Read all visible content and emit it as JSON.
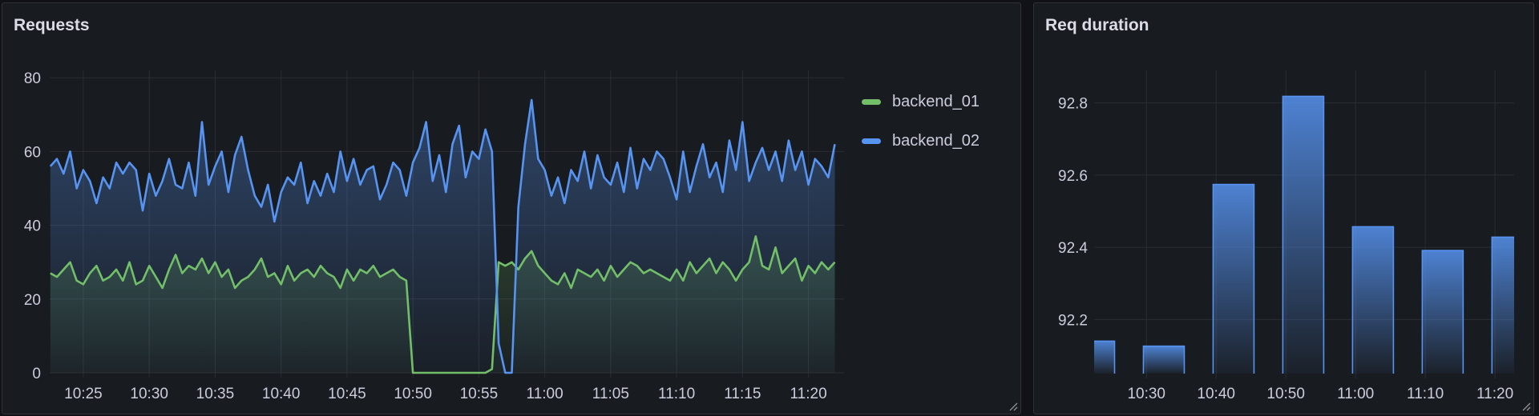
{
  "panels": [
    {
      "title": "Requests"
    },
    {
      "title": "Req duration"
    }
  ],
  "colors": {
    "backend_01": "#73bf69",
    "backend_02": "#5794f2",
    "background": "#181b1f",
    "grid": "#2a2d33",
    "text": "#ccccdc"
  },
  "chart_data": [
    {
      "type": "line",
      "title": "Requests",
      "xlabel": "",
      "ylabel": "",
      "x_domain": [
        "10:22:27",
        "11:22:42"
      ],
      "ylim": [
        0,
        82
      ],
      "y_ticks": [
        "0",
        "20",
        "40",
        "60",
        "80"
      ],
      "x_ticks": [
        "10:25",
        "10:30",
        "10:35",
        "10:40",
        "10:45",
        "10:50",
        "10:55",
        "11:00",
        "11:05",
        "11:10",
        "11:15",
        "11:20"
      ],
      "grid": true,
      "legend": "right",
      "fill": "gradient",
      "x": [
        "10:22:30",
        "10:23:00",
        "10:23:30",
        "10:24:00",
        "10:24:30",
        "10:25:00",
        "10:25:30",
        "10:26:00",
        "10:26:30",
        "10:27:00",
        "10:27:30",
        "10:28:00",
        "10:28:30",
        "10:29:00",
        "10:29:30",
        "10:30:00",
        "10:30:30",
        "10:31:00",
        "10:31:30",
        "10:32:00",
        "10:32:30",
        "10:33:00",
        "10:33:30",
        "10:34:00",
        "10:34:30",
        "10:35:00",
        "10:35:30",
        "10:36:00",
        "10:36:30",
        "10:37:00",
        "10:37:30",
        "10:38:00",
        "10:38:30",
        "10:39:00",
        "10:39:30",
        "10:40:00",
        "10:40:30",
        "10:41:00",
        "10:41:30",
        "10:42:00",
        "10:42:30",
        "10:43:00",
        "10:43:30",
        "10:44:00",
        "10:44:30",
        "10:45:00",
        "10:45:30",
        "10:46:00",
        "10:46:30",
        "10:47:00",
        "10:47:30",
        "10:48:00",
        "10:48:30",
        "10:49:00",
        "10:49:30",
        "10:50:00",
        "10:50:30",
        "10:51:00",
        "10:51:30",
        "10:52:00",
        "10:52:30",
        "10:53:00",
        "10:53:30",
        "10:54:00",
        "10:54:30",
        "10:55:00",
        "10:55:30",
        "10:56:00",
        "10:56:30",
        "10:57:00",
        "10:57:30",
        "10:58:00",
        "10:58:30",
        "10:59:00",
        "10:59:30",
        "11:00:00",
        "11:00:30",
        "11:01:00",
        "11:01:30",
        "11:02:00",
        "11:02:30",
        "11:03:00",
        "11:03:30",
        "11:04:00",
        "11:04:30",
        "11:05:00",
        "11:05:30",
        "11:06:00",
        "11:06:30",
        "11:07:00",
        "11:07:30",
        "11:08:00",
        "11:08:30",
        "11:09:00",
        "11:09:30",
        "11:10:00",
        "11:10:30",
        "11:11:00",
        "11:11:30",
        "11:12:00",
        "11:12:30",
        "11:13:00",
        "11:13:30",
        "11:14:00",
        "11:14:30",
        "11:15:00",
        "11:15:30",
        "11:16:00",
        "11:16:30",
        "11:17:00",
        "11:17:30",
        "11:18:00",
        "11:18:30",
        "11:19:00",
        "11:19:30",
        "11:20:00",
        "11:20:30",
        "11:21:00",
        "11:21:30",
        "11:22:00"
      ],
      "series": [
        {
          "name": "backend_01",
          "color": "#73bf69",
          "values": [
            27,
            26,
            28,
            30,
            25,
            24,
            27,
            29,
            25,
            26,
            28,
            25,
            30,
            24,
            25,
            29,
            26,
            23,
            28,
            32,
            27,
            29,
            28,
            31,
            27,
            30,
            26,
            28,
            23,
            25,
            26,
            28,
            31,
            26,
            27,
            24,
            29,
            25,
            27,
            28,
            26,
            29,
            27,
            26,
            23,
            28,
            25,
            28,
            27,
            29,
            26,
            27,
            28,
            26,
            25,
            0,
            0,
            0,
            0,
            0,
            0,
            0,
            0,
            0,
            0,
            0,
            0,
            1,
            30,
            29,
            30,
            28,
            31,
            33,
            29,
            27,
            25,
            24,
            27,
            23,
            28,
            27,
            26,
            28,
            25,
            29,
            26,
            28,
            30,
            29,
            27,
            28,
            27,
            26,
            25,
            28,
            25,
            30,
            27,
            29,
            31,
            27,
            30,
            28,
            25,
            28,
            30,
            37,
            29,
            28,
            34,
            27,
            29,
            31,
            25,
            29,
            27,
            30,
            28,
            30
          ]
        },
        {
          "name": "backend_02",
          "color": "#5794f2",
          "values": [
            56,
            58,
            54,
            60,
            50,
            55,
            52,
            46,
            53,
            50,
            57,
            54,
            57,
            55,
            44,
            54,
            48,
            52,
            58,
            51,
            50,
            57,
            48,
            68,
            51,
            56,
            60,
            49,
            59,
            64,
            55,
            48,
            45,
            51,
            41,
            49,
            53,
            51,
            57,
            46,
            52,
            48,
            54,
            49,
            60,
            52,
            58,
            51,
            55,
            56,
            47,
            51,
            57,
            55,
            48,
            57,
            61,
            68,
            52,
            59,
            49,
            62,
            67,
            53,
            60,
            58,
            66,
            60,
            8,
            0,
            0,
            45,
            62,
            74,
            58,
            55,
            48,
            53,
            46,
            55,
            52,
            60,
            50,
            59,
            53,
            51,
            57,
            49,
            61,
            50,
            58,
            55,
            60,
            58,
            53,
            47,
            60,
            49,
            56,
            62,
            53,
            57,
            49,
            63,
            55,
            68,
            52,
            57,
            61,
            55,
            60,
            52,
            63,
            55,
            60,
            51,
            58,
            56,
            53,
            62
          ]
        }
      ]
    },
    {
      "type": "bar",
      "title": "Req duration",
      "xlabel": "",
      "ylabel": "",
      "x_domain": [
        "10:22:30",
        "11:22:45"
      ],
      "ylim": [
        92.05,
        92.89
      ],
      "y_ticks": [
        "92.2",
        "92.4",
        "92.6",
        "92.8"
      ],
      "x_ticks": [
        "10:30",
        "10:40",
        "10:50",
        "11:00",
        "11:10",
        "11:20"
      ],
      "grid": true,
      "color": "#5794f2",
      "x": [
        "10:22:30",
        "10:32:30",
        "10:42:30",
        "10:52:30",
        "11:02:30",
        "11:12:30",
        "11:22:30"
      ],
      "values": [
        92.14,
        92.126,
        92.574,
        92.818,
        92.457,
        92.391,
        92.428
      ]
    }
  ]
}
